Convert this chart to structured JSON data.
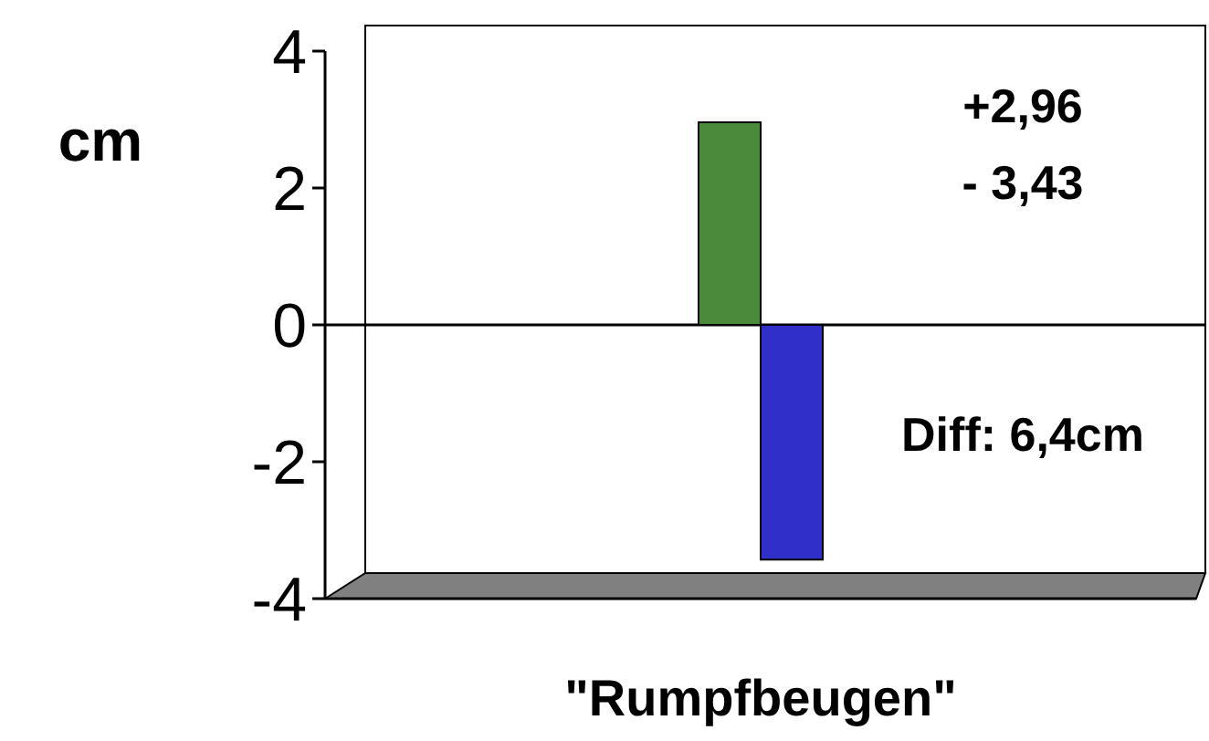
{
  "chart_data": {
    "type": "bar",
    "ylabel": "cm",
    "categories": [
      "\"Rumpfbeugen\""
    ],
    "series": [
      {
        "color": "#4a8a3a",
        "values": [
          2.96
        ]
      },
      {
        "color": "#3030c8",
        "values": [
          -3.43
        ]
      }
    ],
    "ylim": [
      -4,
      4
    ],
    "yticks": [
      -4,
      -2,
      0,
      2,
      4
    ],
    "ref_lines": [
      {
        "axis": "y",
        "value": 0,
        "color": "#000000"
      }
    ],
    "annotations": [
      "+2,96",
      "- 3,43",
      "Diff: 6,4cm"
    ]
  }
}
